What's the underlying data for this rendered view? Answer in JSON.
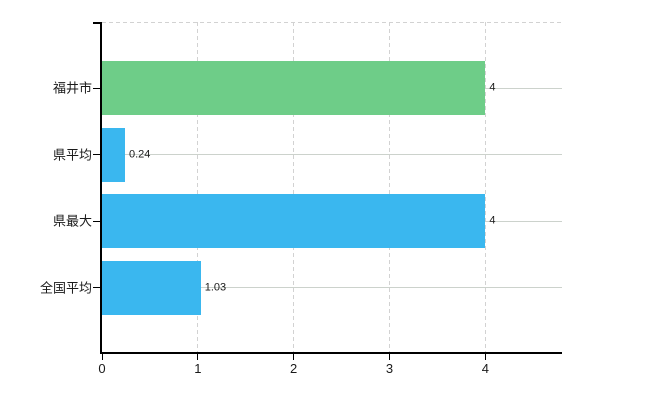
{
  "chart_data": {
    "type": "bar",
    "orientation": "horizontal",
    "categories": [
      "福井市",
      "県平均",
      "県最大",
      "全国平均"
    ],
    "values": [
      4,
      0.24,
      4,
      1.03
    ],
    "value_labels": [
      "4",
      "0.24",
      "4",
      "1.03"
    ],
    "bar_colors": [
      "#6ecd88",
      "#3ab7ef",
      "#3ab7ef",
      "#3ab7ef"
    ],
    "x_ticks": [
      0,
      1,
      2,
      3,
      4
    ],
    "x_tick_labels": [
      "0",
      "1",
      "2",
      "3",
      "4"
    ],
    "xlim": [
      0,
      4.8
    ],
    "grid": true,
    "legend": false,
    "colors": {
      "green_bar": "#6ecd88",
      "blue_bar": "#3ab7ef",
      "grid_solid": "#ccd2cc",
      "grid_dashed": "#d2d2d2",
      "axis": "#000000",
      "text": "#1a1a1a",
      "background": "#ffffff"
    }
  }
}
